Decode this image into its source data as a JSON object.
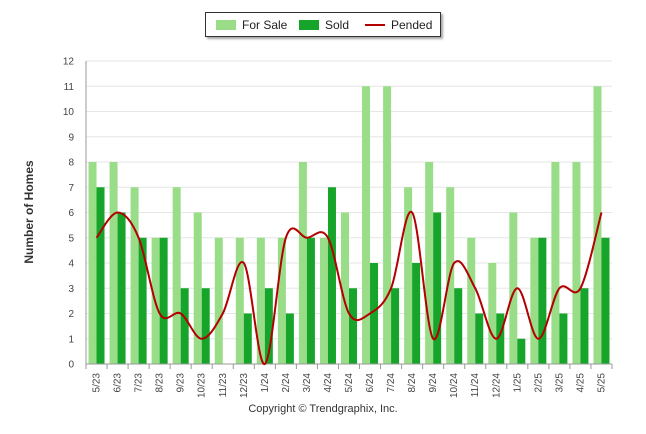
{
  "chart_data": {
    "type": "bar",
    "categories": [
      "5/23",
      "6/23",
      "7/23",
      "8/23",
      "9/23",
      "10/23",
      "11/23",
      "12/23",
      "1/24",
      "2/24",
      "3/24",
      "4/24",
      "5/24",
      "6/24",
      "7/24",
      "8/24",
      "9/24",
      "10/24",
      "11/24",
      "12/24",
      "1/25",
      "2/25",
      "3/25",
      "4/25",
      "5/25"
    ],
    "series": [
      {
        "name": "For Sale",
        "type": "bar",
        "color": "#99dd88",
        "values": [
          8,
          8,
          7,
          5,
          7,
          6,
          5,
          5,
          5,
          5,
          8,
          5,
          6,
          11,
          11,
          7,
          8,
          7,
          5,
          4,
          6,
          5,
          8,
          8,
          11
        ]
      },
      {
        "name": "Sold",
        "type": "bar",
        "color": "#16a52a",
        "values": [
          7,
          6,
          5,
          5,
          3,
          3,
          0,
          2,
          3,
          2,
          5,
          7,
          3,
          4,
          3,
          4,
          6,
          3,
          2,
          2,
          1,
          5,
          2,
          3,
          5
        ]
      },
      {
        "name": "Pended",
        "type": "line",
        "color": "#b30000",
        "values": [
          5,
          6,
          5,
          2,
          2,
          1,
          2,
          4,
          0,
          5,
          5,
          5,
          2,
          2,
          3,
          6,
          1,
          4,
          3,
          1,
          3,
          1,
          3,
          3,
          6
        ]
      }
    ],
    "title": "",
    "xlabel": "",
    "ylabel": "Number of Homes",
    "ylim": [
      0,
      12
    ],
    "yticks": [
      0,
      1,
      2,
      3,
      4,
      5,
      6,
      7,
      8,
      9,
      10,
      11,
      12
    ],
    "grid": true,
    "legend_position": "top-center"
  },
  "footer": {
    "copyright": "Copyright © Trendgraphix, Inc."
  }
}
